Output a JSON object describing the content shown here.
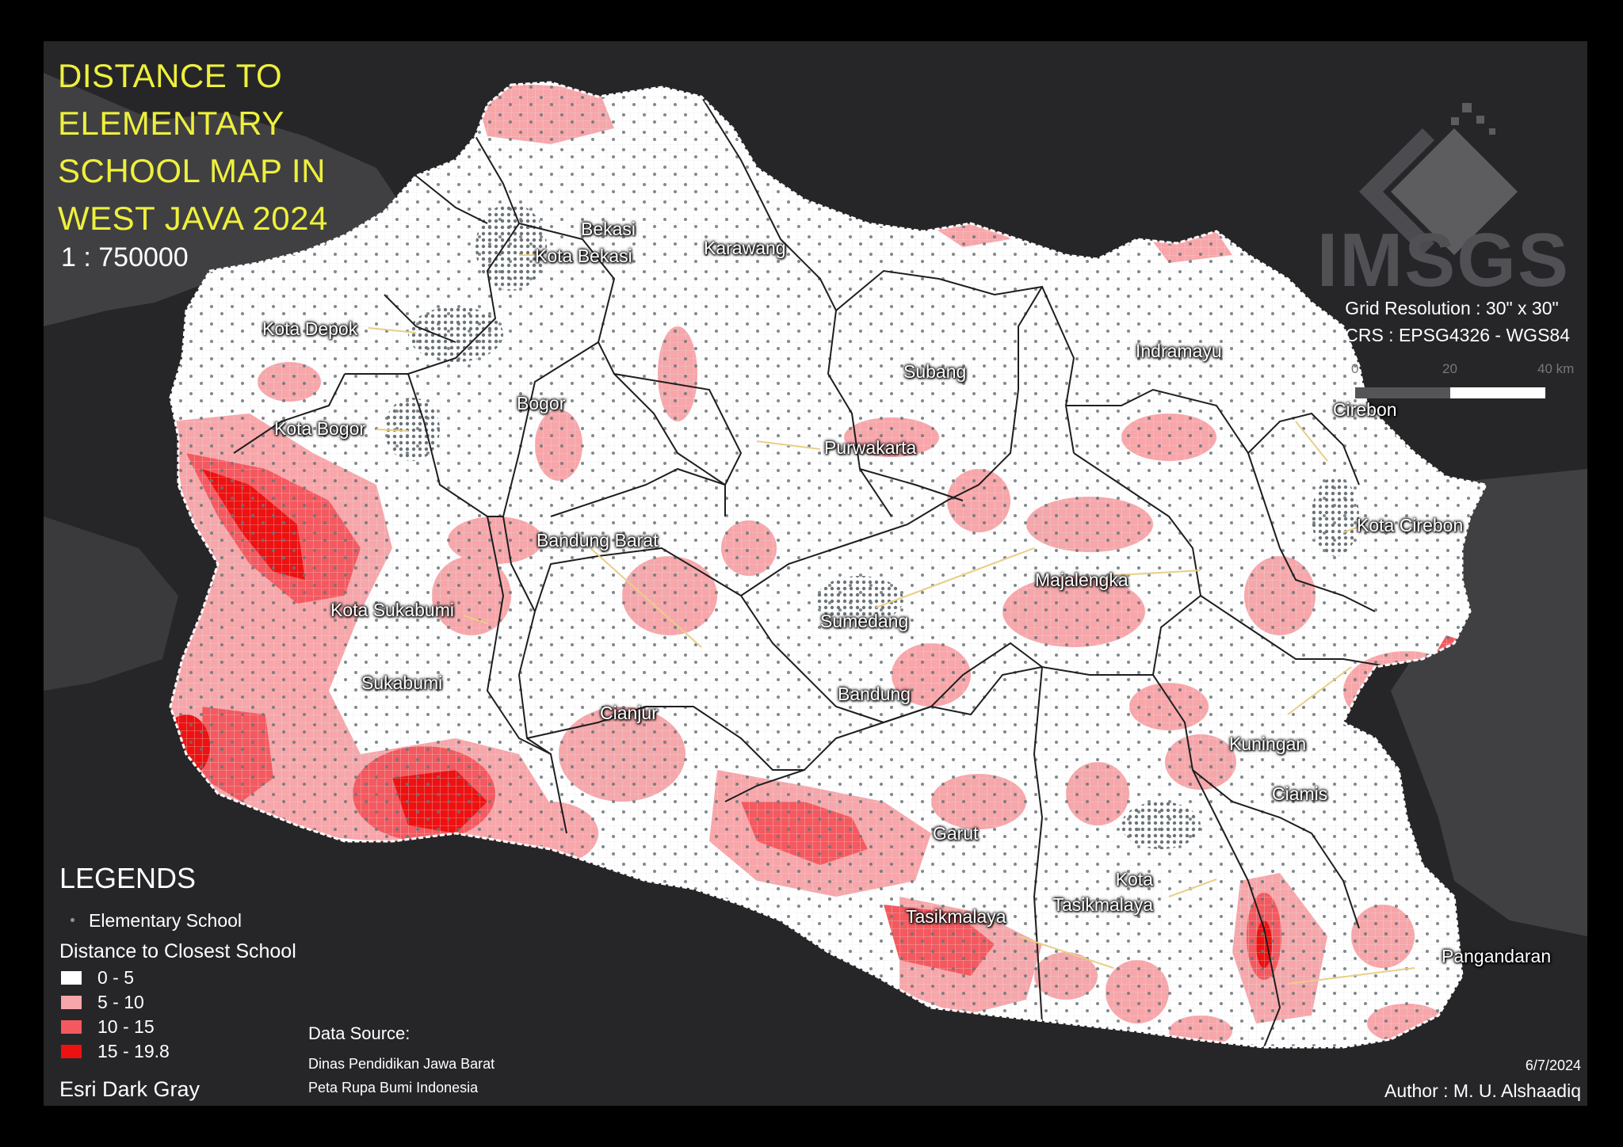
{
  "map": {
    "title_lines": [
      "DISTANCE TO",
      "ELEMENTARY",
      "SCHOOL MAP IN",
      "WEST JAVA 2024"
    ],
    "scale": "1 : 750000",
    "logo": "IMSGS",
    "grid_resolution": "Grid Resolution : 30\" x 30\"",
    "crs": "CRS : EPSG4326 - WGS84",
    "scale_bar": {
      "ticks": [
        "0",
        "20",
        "40 km"
      ]
    },
    "date": "6/7/2024",
    "author": "Author : M. U. Alshaadiq",
    "basemap": "Esri Dark Gray",
    "data_source": {
      "heading": "Data Source:",
      "lines": [
        "Dinas Pendidikan Jawa Barat",
        "Peta Rupa Bumi Indonesia"
      ]
    }
  },
  "legend": {
    "title": "LEGENDS",
    "point_label": "Elementary School",
    "distance_title": "Distance to Closest School",
    "classes": [
      {
        "label": "0 - 5",
        "color": "#ffffff"
      },
      {
        "label": "5 - 10",
        "color": "#f7a6aa"
      },
      {
        "label": "10 - 15",
        "color": "#f4595f"
      },
      {
        "label": "15 - 19.8",
        "color": "#ee1111"
      }
    ]
  },
  "regions": [
    "Bekasi",
    "Kota Bekasi",
    "Karawang",
    "Kota Depok",
    "Bogor",
    "Kota Bogor",
    "Subang",
    "Indramayu",
    "Purwakarta",
    "Cirebon",
    "Kota Cirebon",
    "Bandung Barat",
    "Kota Sukabumi",
    "Sukabumi",
    "Sumedang",
    "Majalengka",
    "Bandung",
    "Cianjur",
    "Kuningan",
    "Ciamis",
    "Garut",
    "Kota Tasikmalaya",
    "Tasikmalaya",
    "Pangandaran"
  ],
  "colors": {
    "background": "#262629",
    "land_dark": "#404043",
    "province": "#ffffff",
    "title": "#eef03c",
    "school_point": "#6a7478"
  }
}
